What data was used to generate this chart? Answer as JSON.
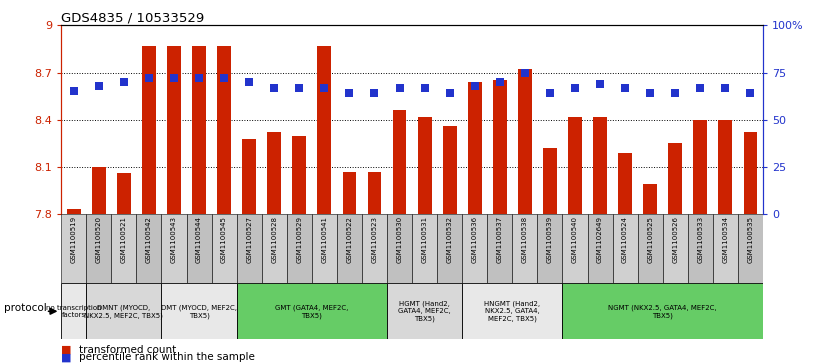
{
  "title": "GDS4835 / 10533529",
  "samples": [
    "GSM1100519",
    "GSM1100520",
    "GSM1100521",
    "GSM1100542",
    "GSM1100543",
    "GSM1100544",
    "GSM1100545",
    "GSM1100527",
    "GSM1100528",
    "GSM1100529",
    "GSM1100541",
    "GSM1100522",
    "GSM1100523",
    "GSM1100530",
    "GSM1100531",
    "GSM1100532",
    "GSM1100536",
    "GSM1100537",
    "GSM1100538",
    "GSM1100539",
    "GSM1100540",
    "GSM1102649",
    "GSM1100524",
    "GSM1100525",
    "GSM1100526",
    "GSM1100533",
    "GSM1100534",
    "GSM1100535"
  ],
  "bar_values": [
    7.83,
    8.1,
    8.06,
    8.87,
    8.87,
    8.87,
    8.87,
    8.28,
    8.32,
    8.3,
    8.87,
    8.07,
    8.07,
    8.46,
    8.42,
    8.36,
    8.64,
    8.65,
    8.72,
    8.22,
    8.42,
    8.42,
    8.19,
    7.99,
    8.25,
    8.4,
    8.4,
    8.32
  ],
  "dot_values": [
    65,
    68,
    70,
    72,
    72,
    72,
    72,
    70,
    67,
    67,
    67,
    64,
    64,
    67,
    67,
    64,
    68,
    70,
    75,
    64,
    67,
    69,
    67,
    64,
    64,
    67,
    67,
    64
  ],
  "groups": [
    {
      "label": "no transcription\nfactors",
      "start": 0,
      "end": 1,
      "color": "#e8e8e8"
    },
    {
      "label": "DMNT (MYOCD,\nNKX2.5, MEF2C, TBX5)",
      "start": 1,
      "end": 4,
      "color": "#d8d8d8"
    },
    {
      "label": "DMT (MYOCD, MEF2C,\nTBX5)",
      "start": 4,
      "end": 7,
      "color": "#e8e8e8"
    },
    {
      "label": "GMT (GATA4, MEF2C,\nTBX5)",
      "start": 7,
      "end": 13,
      "color": "#66cc66"
    },
    {
      "label": "HGMT (Hand2,\nGATA4, MEF2C,\nTBX5)",
      "start": 13,
      "end": 16,
      "color": "#d8d8d8"
    },
    {
      "label": "HNGMT (Hand2,\nNKX2.5, GATA4,\nMEF2C, TBX5)",
      "start": 16,
      "end": 20,
      "color": "#e8e8e8"
    },
    {
      "label": "NGMT (NKX2.5, GATA4, MEF2C,\nTBX5)",
      "start": 20,
      "end": 28,
      "color": "#66cc66"
    }
  ],
  "ylim": [
    7.8,
    9.0
  ],
  "yticks_left": [
    7.8,
    8.1,
    8.4,
    8.7,
    9.0
  ],
  "yticks_right": [
    0,
    25,
    50,
    75,
    100
  ],
  "bar_color": "#cc2200",
  "dot_color": "#2233cc",
  "base_value": 7.8,
  "dot_size": 35
}
